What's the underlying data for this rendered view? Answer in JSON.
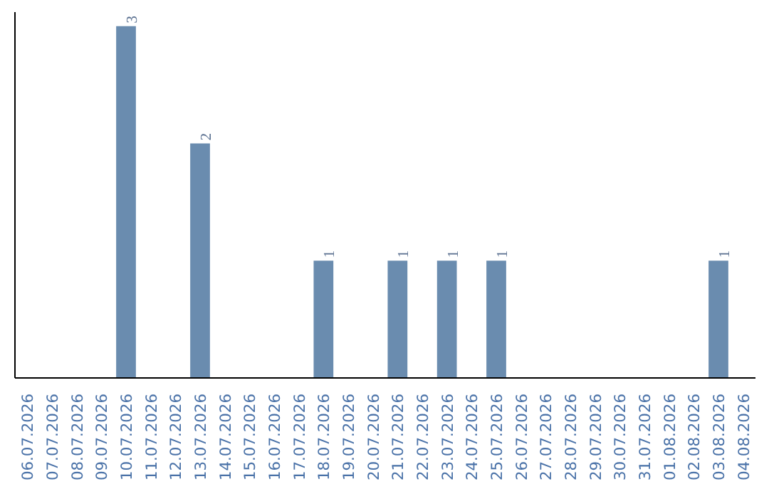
{
  "chart_data": {
    "type": "bar",
    "categories": [
      "06.07.2026",
      "07.07.2026",
      "08.07.2026",
      "09.07.2026",
      "10.07.2026",
      "11.07.2026",
      "12.07.2026",
      "13.07.2026",
      "14.07.2026",
      "15.07.2026",
      "16.07.2026",
      "17.07.2026",
      "18.07.2026",
      "19.07.2026",
      "20.07.2026",
      "21.07.2026",
      "22.07.2026",
      "23.07.2026",
      "24.07.2026",
      "25.07.2026",
      "26.07.2026",
      "27.07.2026",
      "28.07.2026",
      "29.07.2026",
      "30.07.2026",
      "31.07.2026",
      "01.08.2026",
      "02.08.2026",
      "03.08.2026",
      "04.08.2026"
    ],
    "values": [
      0,
      0,
      0,
      0,
      3,
      0,
      0,
      2,
      0,
      0,
      0,
      0,
      1,
      0,
      0,
      1,
      0,
      1,
      0,
      1,
      0,
      0,
      0,
      0,
      0,
      0,
      0,
      0,
      1,
      0
    ],
    "value_labels": [
      null,
      null,
      null,
      null,
      "3",
      null,
      null,
      "2",
      null,
      null,
      null,
      null,
      "1",
      null,
      null,
      "1",
      null,
      "1",
      null,
      "1",
      null,
      null,
      null,
      null,
      null,
      null,
      null,
      null,
      "1",
      null
    ],
    "color": "#6a8caf",
    "tick_labels": "x",
    "grid": false
  }
}
